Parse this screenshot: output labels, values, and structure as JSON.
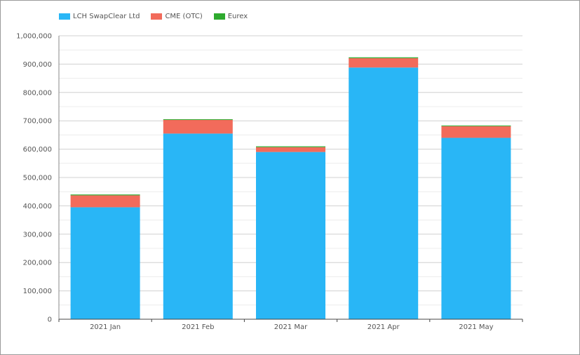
{
  "chart_data": {
    "type": "bar",
    "stacked": true,
    "categories": [
      "2021 Jan",
      "2021 Feb",
      "2021 Mar",
      "2021 Apr",
      "2021 May"
    ],
    "series": [
      {
        "name": "LCH SwapClear Ltd",
        "color": "#29b6f6",
        "values": [
          395000,
          655000,
          590000,
          888000,
          640000
        ]
      },
      {
        "name": "CME (OTC)",
        "color": "#f26b5b",
        "values": [
          42000,
          48000,
          17000,
          33000,
          41000
        ]
      },
      {
        "name": "Eurex",
        "color": "#2eaa2e",
        "values": [
          3000,
          2500,
          3000,
          3000,
          2500
        ]
      }
    ],
    "yticks": [
      "0",
      "100,000",
      "200,000",
      "300,000",
      "400,000",
      "500,000",
      "600,000",
      "700,000",
      "800,000",
      "900,000",
      "1,000,000"
    ],
    "ylim": [
      0,
      1000000
    ],
    "grid": true,
    "legend_position": "top-left",
    "title": "",
    "xlabel": "",
    "ylabel": ""
  }
}
